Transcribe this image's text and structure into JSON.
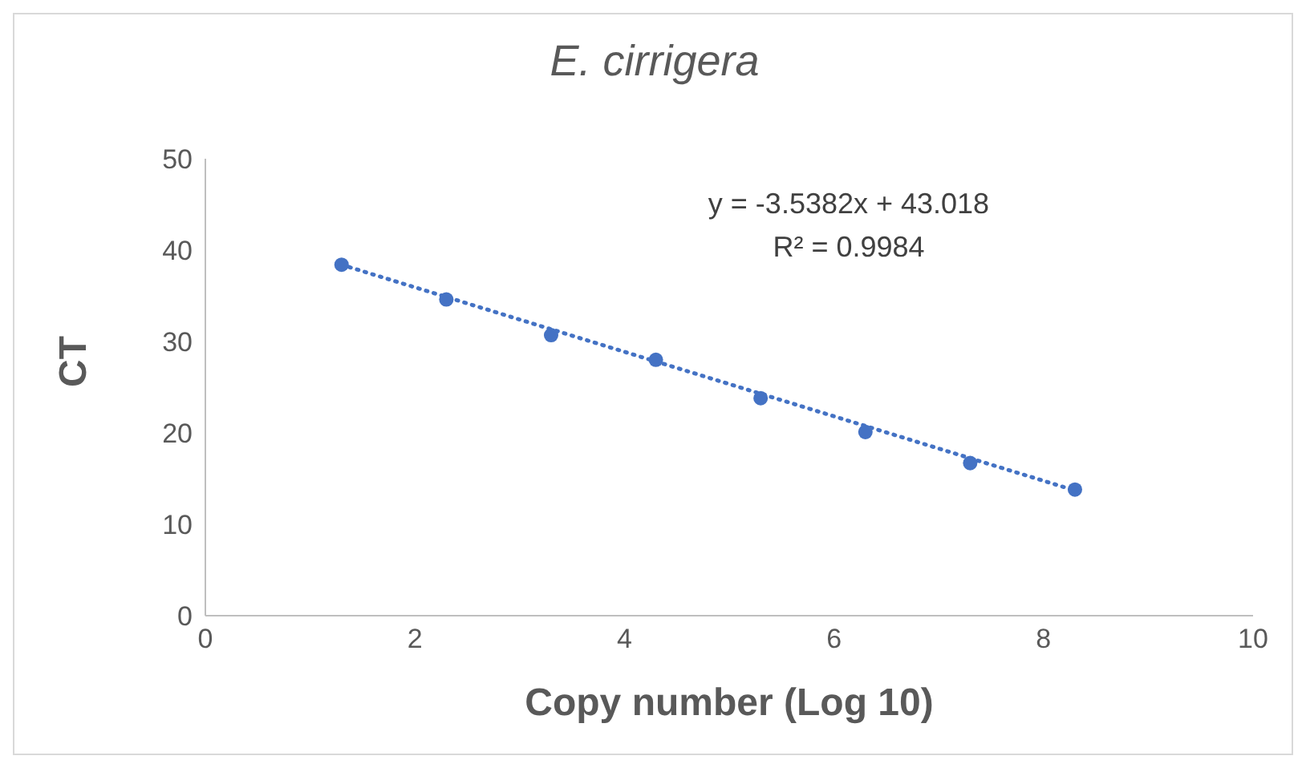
{
  "chart_data": {
    "type": "scatter",
    "title": "E. cirrigera",
    "xlabel": "Copy number (Log 10)",
    "ylabel": "CT",
    "x": [
      1.3,
      2.3,
      3.3,
      4.3,
      5.3,
      6.3,
      7.3,
      8.3
    ],
    "series": [
      {
        "color": "#4472c4",
        "values": [
          38.4,
          34.6,
          30.7,
          28.0,
          23.8,
          20.1,
          16.7,
          13.8
        ],
        "marker": "circle"
      },
      {
        "type": "line",
        "color": "#4472c4",
        "x": [
          1.3,
          8.3
        ],
        "values": [
          38.4,
          13.7
        ],
        "line_style": "dotted",
        "marker": "none"
      }
    ],
    "xlim": [
      0,
      10
    ],
    "xticks": [
      0,
      2,
      4,
      6,
      8,
      10
    ],
    "ylim": [
      0,
      50
    ],
    "yticks": [
      0,
      10,
      20,
      30,
      40,
      50
    ],
    "grid": false,
    "annotations": [
      "y = -3.5382x + 43.018",
      "R² = 0.9984"
    ]
  }
}
